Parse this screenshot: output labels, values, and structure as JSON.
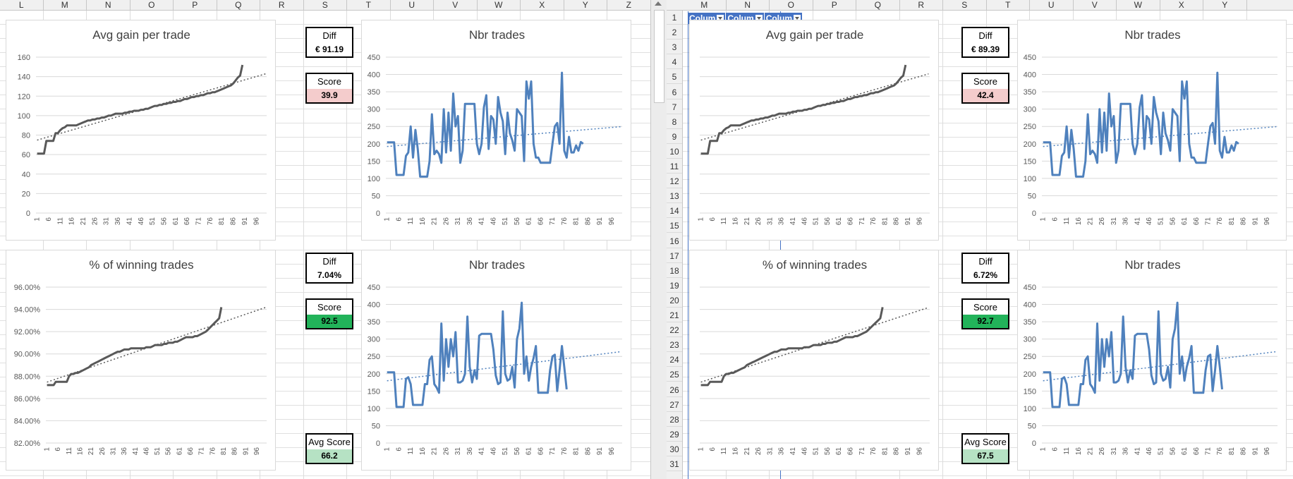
{
  "left_pane": {
    "columns": [
      "L",
      "M",
      "N",
      "O",
      "P",
      "Q",
      "R",
      "S",
      "T",
      "U",
      "V",
      "W",
      "X",
      "Y",
      "Z"
    ],
    "charts": [
      {
        "title": "Avg gain per trade",
        "type": "gain"
      },
      {
        "title": "Nbr trades",
        "type": "trades1"
      },
      {
        "title": "% of winning trades",
        "type": "win"
      },
      {
        "title": "Nbr trades",
        "type": "trades2"
      }
    ],
    "diff1": {
      "label": "Diff",
      "value": "€ 91.19"
    },
    "score1": {
      "label": "Score",
      "value": "39.9"
    },
    "diff2": {
      "label": "Diff",
      "value": "7.04%"
    },
    "score2": {
      "label": "Score",
      "value": "92.5"
    },
    "avg": {
      "label": "Avg Score",
      "value": "66.2"
    }
  },
  "right_pane": {
    "columns": [
      "M",
      "N",
      "O",
      "P",
      "Q",
      "R",
      "S",
      "T",
      "U",
      "V",
      "W",
      "X",
      "Y"
    ],
    "rows": [
      "1",
      "2",
      "3",
      "4",
      "5",
      "6",
      "7",
      "8",
      "9",
      "10",
      "11",
      "12",
      "13",
      "14",
      "15",
      "16",
      "17",
      "18",
      "19",
      "20",
      "21",
      "22",
      "23",
      "24",
      "25",
      "26",
      "27",
      "28",
      "29",
      "30",
      "31"
    ],
    "filters": [
      "Colum",
      "Colum",
      "Colum"
    ],
    "charts": [
      {
        "title": "Avg gain per trade",
        "type": "gain"
      },
      {
        "title": "Nbr trades",
        "type": "trades1"
      },
      {
        "title": "% of winning trades",
        "type": "win"
      },
      {
        "title": "Nbr trades",
        "type": "trades2"
      }
    ],
    "diff1": {
      "label": "Diff",
      "value": "€ 89.39"
    },
    "score1": {
      "label": "Score",
      "value": "42.4"
    },
    "diff2": {
      "label": "Diff",
      "value": "6.72%"
    },
    "score2": {
      "label": "Score",
      "value": "92.7"
    },
    "avg": {
      "label": "Avg Score",
      "value": "67.5"
    }
  },
  "chart_data": [
    {
      "type": "line",
      "title": "Avg gain per trade",
      "ylim": [
        0,
        160
      ],
      "yticks": [
        "0",
        "20",
        "40",
        "60",
        "80",
        "100",
        "120",
        "140",
        "160"
      ],
      "x_ticks": [
        "1",
        "6",
        "11",
        "16",
        "21",
        "26",
        "31",
        "36",
        "41",
        "46",
        "51",
        "56",
        "61",
        "66",
        "71",
        "76",
        "81",
        "86",
        "91",
        "96"
      ],
      "series": [
        {
          "values": [
            61,
            61,
            61,
            61,
            74,
            74,
            74,
            74,
            82,
            82,
            85,
            87,
            88,
            90,
            90,
            90,
            90,
            90,
            91,
            92,
            93,
            94,
            95,
            95,
            96,
            96,
            97,
            97,
            98,
            98,
            99,
            100,
            100,
            101,
            102,
            102,
            102,
            102,
            103,
            103,
            104,
            104,
            105,
            105,
            105,
            106,
            106,
            107,
            107,
            108,
            109,
            110,
            110,
            111,
            111,
            112,
            112,
            113,
            113,
            114,
            114,
            115,
            115,
            116,
            117,
            117,
            118,
            119,
            119,
            120,
            120,
            121,
            121,
            122,
            123,
            123,
            124,
            124,
            125,
            126,
            127,
            128,
            129,
            130,
            131,
            133,
            136,
            139,
            141,
            152
          ]
        }
      ],
      "trendline": true
    },
    {
      "type": "line",
      "title": "Nbr trades",
      "ylim": [
        0,
        450
      ],
      "yticks": [
        "0",
        "50",
        "100",
        "150",
        "200",
        "250",
        "300",
        "350",
        "400",
        "450"
      ],
      "x_ticks": [
        "1",
        "6",
        "11",
        "16",
        "21",
        "26",
        "31",
        "36",
        "41",
        "46",
        "51",
        "56",
        "61",
        "66",
        "71",
        "76",
        "81",
        "86",
        "91",
        "96"
      ],
      "series": [
        {
          "values": [
            204,
            204,
            204,
            204,
            110,
            110,
            110,
            110,
            165,
            175,
            250,
            160,
            240,
            185,
            105,
            105,
            105,
            105,
            150,
            285,
            170,
            180,
            170,
            145,
            300,
            175,
            290,
            180,
            345,
            250,
            280,
            145,
            180,
            315,
            315,
            315,
            315,
            315,
            200,
            170,
            200,
            305,
            340,
            185,
            280,
            270,
            200,
            335,
            290,
            265,
            170,
            290,
            230,
            210,
            180,
            300,
            290,
            280,
            150,
            380,
            330,
            380,
            200,
            160,
            160,
            145,
            145,
            145,
            145,
            145,
            200,
            250,
            260,
            200,
            405,
            180,
            160,
            220,
            175,
            175,
            195,
            180,
            205,
            200
          ]
        }
      ],
      "trendline": true
    },
    {
      "type": "line",
      "title": "% of winning trades",
      "ylim": [
        82,
        96
      ],
      "yticks": [
        "82.00%",
        "84.00%",
        "86.00%",
        "88.00%",
        "90.00%",
        "92.00%",
        "94.00%",
        "96.00%"
      ],
      "x_ticks": [
        "1",
        "6",
        "11",
        "16",
        "21",
        "26",
        "31",
        "36",
        "41",
        "46",
        "51",
        "56",
        "61",
        "66",
        "71",
        "76",
        "81",
        "86",
        "91",
        "96"
      ],
      "series": [
        {
          "values": [
            87.2,
            87.2,
            87.2,
            87.2,
            87.5,
            87.5,
            87.5,
            87.5,
            87.5,
            87.5,
            88.0,
            88.2,
            88.2,
            88.3,
            88.3,
            88.4,
            88.5,
            88.6,
            88.7,
            88.8,
            89.0,
            89.1,
            89.2,
            89.3,
            89.4,
            89.5,
            89.6,
            89.7,
            89.8,
            89.9,
            90.0,
            90.1,
            90.2,
            90.2,
            90.3,
            90.4,
            90.4,
            90.4,
            90.5,
            90.5,
            90.5,
            90.5,
            90.5,
            90.5,
            90.5,
            90.6,
            90.6,
            90.6,
            90.7,
            90.8,
            90.8,
            90.8,
            90.8,
            90.9,
            90.9,
            91.0,
            91.0,
            91.0,
            91.1,
            91.1,
            91.2,
            91.3,
            91.4,
            91.5,
            91.5,
            91.5,
            91.5,
            91.6,
            91.6,
            91.7,
            91.8,
            91.9,
            92.0,
            92.2,
            92.4,
            92.6,
            92.8,
            93.0,
            93.2,
            94.2
          ]
        }
      ],
      "trendline": true
    },
    {
      "type": "line",
      "title": "Nbr trades",
      "ylim": [
        0,
        450
      ],
      "yticks": [
        "0",
        "50",
        "100",
        "150",
        "200",
        "250",
        "300",
        "350",
        "400",
        "450"
      ],
      "x_ticks": [
        "1",
        "6",
        "11",
        "16",
        "21",
        "26",
        "31",
        "36",
        "41",
        "46",
        "51",
        "56",
        "61",
        "66",
        "71",
        "76",
        "81",
        "86",
        "91",
        "96"
      ],
      "series": [
        {
          "values": [
            204,
            204,
            204,
            204,
            104,
            104,
            104,
            104,
            185,
            190,
            170,
            110,
            110,
            110,
            110,
            110,
            170,
            170,
            240,
            250,
            170,
            160,
            145,
            345,
            180,
            300,
            220,
            300,
            250,
            320,
            175,
            175,
            180,
            200,
            365,
            220,
            175,
            210,
            185,
            310,
            315,
            315,
            315,
            315,
            315,
            270,
            195,
            170,
            175,
            380,
            200,
            180,
            185,
            220,
            160,
            300,
            330,
            405,
            200,
            250,
            180,
            220,
            245,
            280,
            145,
            145,
            145,
            145,
            145,
            210,
            250,
            255,
            150,
            210,
            280,
            220,
            155
          ]
        }
      ],
      "trendline": true
    }
  ]
}
